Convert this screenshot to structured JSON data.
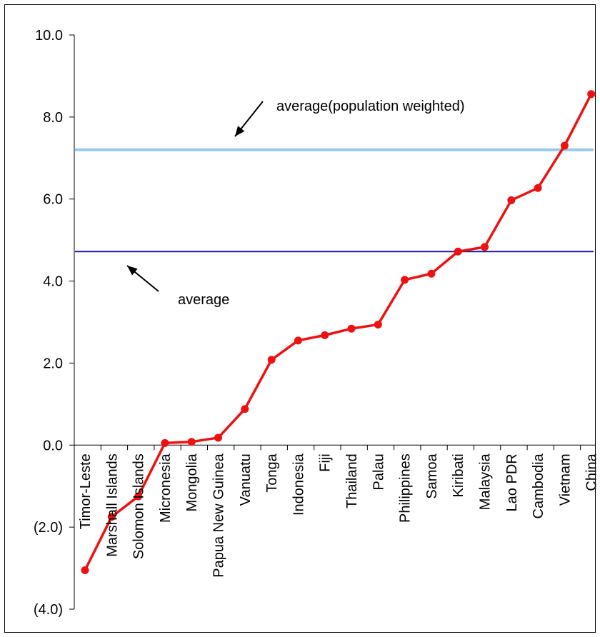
{
  "chart_data": {
    "type": "line",
    "title": "",
    "xlabel": "",
    "ylabel": "",
    "ylim": [
      -4.0,
      10.0
    ],
    "y_ticks": [
      {
        "value": 10,
        "label": "10.0"
      },
      {
        "value": 8,
        "label": "8.0"
      },
      {
        "value": 6,
        "label": "6.0"
      },
      {
        "value": 4,
        "label": "4.0"
      },
      {
        "value": 2,
        "label": "2.0"
      },
      {
        "value": 0,
        "label": "0.0"
      },
      {
        "value": -2,
        "label": "(2.0)"
      },
      {
        "value": -4,
        "label": "(4.0)"
      }
    ],
    "grid": false,
    "legend": "none",
    "categories": [
      "Timor-Leste",
      "Marshall Islands",
      "Solomon Islands",
      "Micronesia",
      "Mongolia",
      "Papua New Guinea",
      "Vanuatu",
      "Tonga",
      "Indonesia",
      "Fiji",
      "Thailand",
      "Palau",
      "Philippines",
      "Samoa",
      "Kiribati",
      "Malaysia",
      "Lao PDR",
      "Cambodia",
      "Vietnam",
      "China"
    ],
    "series": [
      {
        "color": "#ee1111",
        "values": [
          -3.05,
          -1.75,
          -1.25,
          0.05,
          0.08,
          0.18,
          0.88,
          2.08,
          2.55,
          2.68,
          2.84,
          2.94,
          4.03,
          4.18,
          4.72,
          4.83,
          5.97,
          6.27,
          7.3,
          8.56
        ]
      }
    ],
    "reference_lines": [
      {
        "label": "average(population weighted)",
        "value": 7.2,
        "color": "#99c8f0"
      },
      {
        "label": "average",
        "value": 4.72,
        "color": "#1a1aa0"
      }
    ]
  }
}
